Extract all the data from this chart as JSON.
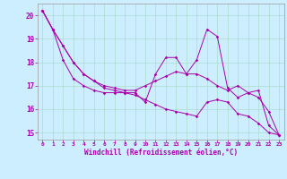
{
  "xlabel": "Windchill (Refroidissement éolien,°C)",
  "bg_color": "#cceeff",
  "grid_color": "#aaddcc",
  "line_color": "#aa00aa",
  "xlim": [
    -0.5,
    23.5
  ],
  "ylim": [
    14.7,
    20.5
  ],
  "xticks": [
    0,
    1,
    2,
    3,
    4,
    5,
    6,
    7,
    8,
    9,
    10,
    11,
    12,
    13,
    14,
    15,
    16,
    17,
    18,
    19,
    20,
    21,
    22,
    23
  ],
  "yticks": [
    15,
    16,
    17,
    18,
    19,
    20
  ],
  "line1": [
    20.2,
    19.4,
    18.7,
    18.0,
    17.5,
    17.2,
    16.9,
    16.8,
    16.7,
    16.7,
    16.3,
    17.5,
    18.2,
    18.2,
    17.5,
    18.1,
    19.4,
    19.1,
    16.9,
    16.5,
    16.7,
    16.8,
    15.3,
    14.9
  ],
  "line2": [
    20.2,
    19.4,
    18.7,
    18.0,
    17.5,
    17.2,
    17.0,
    16.9,
    16.8,
    16.8,
    17.0,
    17.2,
    17.4,
    17.6,
    17.5,
    17.5,
    17.3,
    17.0,
    16.8,
    17.0,
    16.7,
    16.5,
    15.9,
    14.9
  ],
  "line3": [
    20.2,
    19.4,
    18.1,
    17.3,
    17.0,
    16.8,
    16.7,
    16.7,
    16.7,
    16.6,
    16.4,
    16.2,
    16.0,
    15.9,
    15.8,
    15.7,
    16.3,
    16.4,
    16.3,
    15.8,
    15.7,
    15.4,
    15.0,
    14.9
  ]
}
